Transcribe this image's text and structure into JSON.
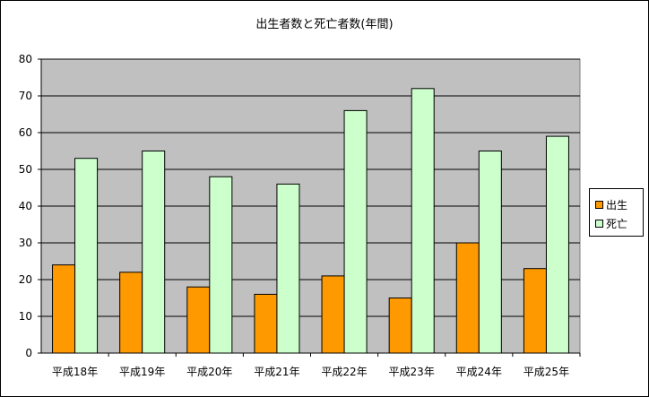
{
  "chart_data": {
    "type": "bar",
    "title": "出生者数と死亡者数(年間)",
    "categories": [
      "平成18年",
      "平成19年",
      "平成20年",
      "平成21年",
      "平成22年",
      "平成23年",
      "平成24年",
      "平成25年"
    ],
    "series": [
      {
        "name": "出生",
        "values": [
          24,
          22,
          18,
          16,
          21,
          15,
          30,
          23
        ],
        "color": "#ff9900"
      },
      {
        "name": "死亡",
        "values": [
          53,
          55,
          48,
          46,
          66,
          72,
          55,
          59
        ],
        "color": "#ccffcc"
      }
    ],
    "ylim": [
      0,
      80
    ],
    "yticks": [
      0,
      10,
      20,
      30,
      40,
      50,
      60,
      70,
      80
    ],
    "grid": true,
    "plot_background": "#c0c0c0",
    "legend_position": "right"
  }
}
